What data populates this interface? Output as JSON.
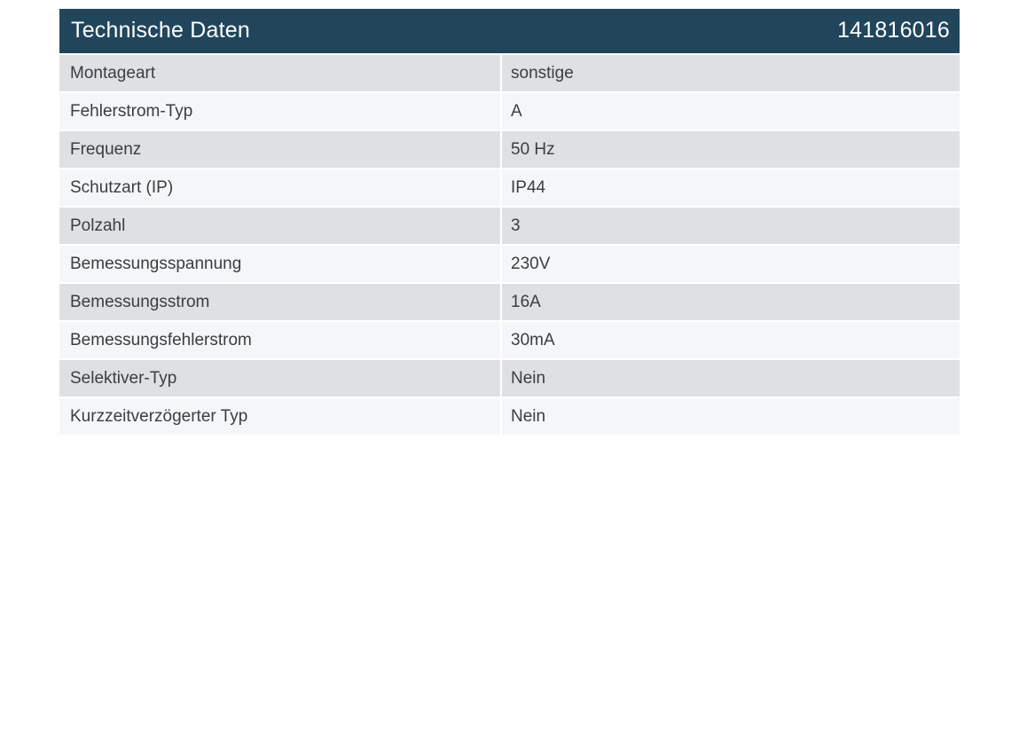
{
  "header": {
    "title": "Technische Daten",
    "article_number": "141816016"
  },
  "colors": {
    "header_bg": "#21465c",
    "header_text": "#ffffff",
    "row_even": "#dde1e4",
    "row_odd": "#f5f6f8",
    "text": "#3a3d41"
  },
  "rows": [
    {
      "label": "Montageart",
      "value": "sonstige"
    },
    {
      "label": "Fehlerstrom-Typ",
      "value": "A"
    },
    {
      "label": "Frequenz",
      "value": "50 Hz"
    },
    {
      "label": "Schutzart (IP)",
      "value": "IP44"
    },
    {
      "label": "Polzahl",
      "value": "3"
    },
    {
      "label": "Bemessungsspannung",
      "value": "230V"
    },
    {
      "label": "Bemessungsstrom",
      "value": "16A"
    },
    {
      "label": "Bemessungsfehlerstrom",
      "value": "30mA"
    },
    {
      "label": "Selektiver-Typ",
      "value": "Nein"
    },
    {
      "label": "Kurzzeitverzögerter Typ",
      "value": "Nein"
    }
  ]
}
